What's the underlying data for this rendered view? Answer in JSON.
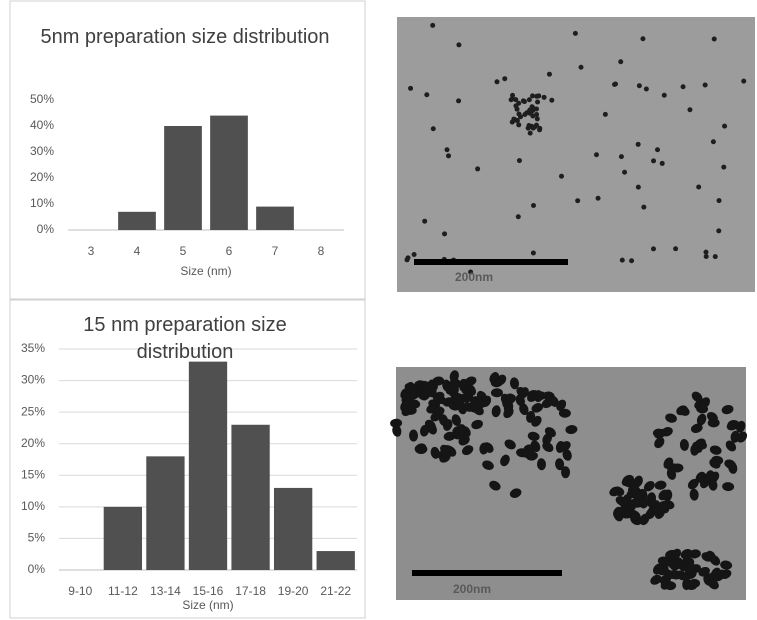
{
  "chart_data": [
    {
      "type": "bar",
      "title": "5nm preparation size distribution",
      "categories": [
        "3",
        "4",
        "5",
        "6",
        "7",
        "8"
      ],
      "values": [
        0,
        7,
        40,
        44,
        9,
        0
      ],
      "color": "#505050",
      "xlabel": "Size (nm)",
      "ylim": [
        0,
        50
      ],
      "yticks": [
        {
          "value": 0,
          "label": "0%"
        },
        {
          "value": 10,
          "label": "10%"
        },
        {
          "value": 20,
          "label": "20%"
        },
        {
          "value": 30,
          "label": "30%"
        },
        {
          "value": 40,
          "label": "40%"
        },
        {
          "value": 50,
          "label": "50%"
        }
      ],
      "grid": false
    },
    {
      "type": "bar",
      "title": "15 nm preparation size distribution",
      "categories": [
        "9-10",
        "11-12",
        "13-14",
        "15-16",
        "17-18",
        "19-20",
        "21-22"
      ],
      "values": [
        0,
        10,
        18,
        33,
        23,
        13,
        3
      ],
      "color": "#505050",
      "xlabel": "Size (nm)",
      "ylim": [
        0,
        35
      ],
      "yticks": [
        {
          "value": 0,
          "label": "0%"
        },
        {
          "value": 5,
          "label": "5%"
        },
        {
          "value": 10,
          "label": "10%"
        },
        {
          "value": 15,
          "label": "15%"
        },
        {
          "value": 20,
          "label": "20%"
        },
        {
          "value": 25,
          "label": "25%"
        },
        {
          "value": 30,
          "label": "30%"
        },
        {
          "value": 35,
          "label": "35%"
        }
      ],
      "grid": true
    }
  ],
  "images": [
    {
      "scale_label": "200nm"
    },
    {
      "scale_label": "200nm"
    }
  ]
}
